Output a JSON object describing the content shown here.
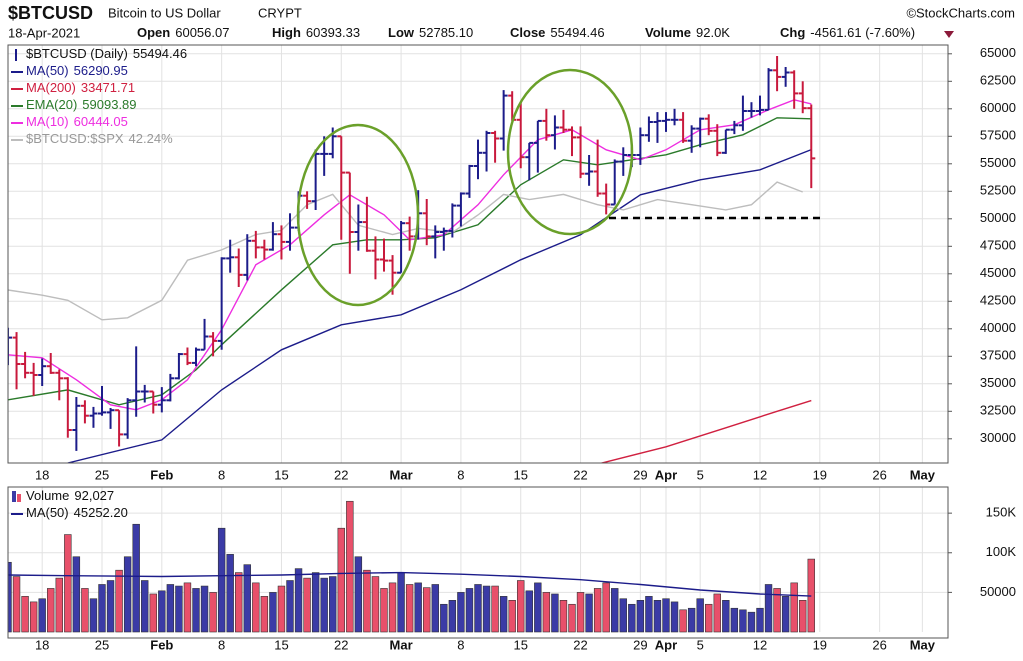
{
  "header": {
    "symbol": "$BTCUSD",
    "name": "Bitcoin to US Dollar",
    "exchange": "CRYPT",
    "source": "©StockCharts.com",
    "date": "18-Apr-2021",
    "stats": [
      {
        "label": "Open",
        "value": "60056.07"
      },
      {
        "label": "High",
        "value": "60393.33"
      },
      {
        "label": "Low",
        "value": "52785.10"
      },
      {
        "label": "Close",
        "value": "55494.46"
      },
      {
        "label": "Volume",
        "value": "92.0K"
      },
      {
        "label": "Chg",
        "value": "-4561.61 (-7.60%)"
      }
    ]
  },
  "chart_data": {
    "type": "ohlc",
    "name": "$BTCUSD (Daily)",
    "last": "55494.46",
    "up_color": "#1c1c8a",
    "down_color": "#c8193c",
    "grid": true,
    "xlim": [
      "2021-01-14",
      "2021-05-04"
    ],
    "ylim": [
      27800,
      65800
    ],
    "y3lim": [
      15.87,
      56.54
    ],
    "yticks": [
      30000,
      32500,
      35000,
      37500,
      40000,
      42500,
      45000,
      47500,
      50000,
      52500,
      55000,
      57500,
      60000,
      62500,
      65000
    ],
    "xticks": [
      {
        "value": "2021-01-18",
        "label": "18"
      },
      {
        "value": "2021-01-25",
        "label": "25"
      },
      {
        "value": "2021-02-01",
        "label": "Feb"
      },
      {
        "value": "2021-02-08",
        "label": "8"
      },
      {
        "value": "2021-02-15",
        "label": "15"
      },
      {
        "value": "2021-02-22",
        "label": "22"
      },
      {
        "value": "2021-03-01",
        "label": "Mar"
      },
      {
        "value": "2021-03-08",
        "label": "8"
      },
      {
        "value": "2021-03-15",
        "label": "15"
      },
      {
        "value": "2021-03-22",
        "label": "22"
      },
      {
        "value": "2021-03-29",
        "label": "29"
      },
      {
        "value": "2021-04-01",
        "label": "Apr"
      },
      {
        "value": "2021-04-05",
        "label": "5"
      },
      {
        "value": "2021-04-12",
        "label": "12"
      },
      {
        "value": "2021-04-19",
        "label": "19"
      },
      {
        "value": "2021-04-26",
        "label": "26"
      },
      {
        "value": "2021-05-01",
        "label": "May"
      }
    ],
    "x": [
      "2021-01-14",
      "2021-01-15",
      "2021-01-16",
      "2021-01-17",
      "2021-01-18",
      "2021-01-19",
      "2021-01-20",
      "2021-01-21",
      "2021-01-22",
      "2021-01-23",
      "2021-01-24",
      "2021-01-25",
      "2021-01-26",
      "2021-01-27",
      "2021-01-28",
      "2021-01-29",
      "2021-01-30",
      "2021-01-31",
      "2021-02-01",
      "2021-02-02",
      "2021-02-03",
      "2021-02-04",
      "2021-02-05",
      "2021-02-06",
      "2021-02-07",
      "2021-02-08",
      "2021-02-09",
      "2021-02-10",
      "2021-02-11",
      "2021-02-12",
      "2021-02-13",
      "2021-02-14",
      "2021-02-15",
      "2021-02-16",
      "2021-02-17",
      "2021-02-18",
      "2021-02-19",
      "2021-02-20",
      "2021-02-21",
      "2021-02-22",
      "2021-02-23",
      "2021-02-24",
      "2021-02-25",
      "2021-02-26",
      "2021-02-27",
      "2021-02-28",
      "2021-03-01",
      "2021-03-02",
      "2021-03-03",
      "2021-03-04",
      "2021-03-05",
      "2021-03-06",
      "2021-03-07",
      "2021-03-08",
      "2021-03-09",
      "2021-03-10",
      "2021-03-11",
      "2021-03-12",
      "2021-03-13",
      "2021-03-14",
      "2021-03-15",
      "2021-03-16",
      "2021-03-17",
      "2021-03-18",
      "2021-03-19",
      "2021-03-20",
      "2021-03-21",
      "2021-03-22",
      "2021-03-23",
      "2021-03-24",
      "2021-03-25",
      "2021-03-26",
      "2021-03-27",
      "2021-03-28",
      "2021-03-29",
      "2021-03-30",
      "2021-03-31",
      "2021-04-01",
      "2021-04-02",
      "2021-04-03",
      "2021-04-04",
      "2021-04-05",
      "2021-04-06",
      "2021-04-07",
      "2021-04-08",
      "2021-04-09",
      "2021-04-10",
      "2021-04-11",
      "2021-04-12",
      "2021-04-13",
      "2021-04-14",
      "2021-04-15",
      "2021-04-16",
      "2021-04-17",
      "2021-04-18"
    ],
    "open": [
      37400,
      39200,
      36800,
      36000,
      35800,
      36600,
      36000,
      35500,
      30800,
      33000,
      32100,
      32300,
      32400,
      32600,
      30400,
      33500,
      34300,
      34300,
      33100,
      33500,
      35500,
      37700,
      36900,
      38100,
      39300,
      38900,
      46400,
      46500,
      44900,
      48000,
      47400,
      47200,
      48600,
      47900,
      49200,
      52100,
      51600,
      55900,
      55900,
      57500,
      54200,
      48800,
      49700,
      47100,
      46300,
      46200,
      45100,
      49600,
      48400,
      50500,
      48400,
      48800,
      48900,
      51200,
      52300,
      54800,
      56000,
      57800,
      57300,
      61200,
      59000,
      55600,
      56900,
      58900,
      57600,
      58300,
      58100,
      57400,
      54100,
      54300,
      52300,
      51300,
      55200,
      55800,
      55800,
      57600,
      58800,
      58900,
      59000,
      59000,
      57100,
      58200,
      59100,
      58000,
      56000,
      58100,
      58500,
      59800,
      59800,
      59900,
      63500,
      62900,
      63300,
      61400,
      60056.07
    ],
    "high": [
      40100,
      39700,
      37900,
      36900,
      37300,
      37800,
      36300,
      35600,
      33800,
      33500,
      32900,
      34800,
      32800,
      32600,
      33700,
      38400,
      34900,
      34300,
      34700,
      35900,
      37800,
      38300,
      38300,
      40900,
      39700,
      46500,
      48100,
      47300,
      48600,
      48900,
      48100,
      49700,
      49400,
      50500,
      52500,
      52500,
      56300,
      57500,
      58300,
      57500,
      54200,
      51300,
      52000,
      48400,
      48200,
      46700,
      49800,
      50200,
      52600,
      51800,
      49400,
      49200,
      51400,
      52400,
      54900,
      57200,
      58000,
      58000,
      61700,
      61600,
      60600,
      56900,
      58900,
      60000,
      59400,
      59900,
      58400,
      58400,
      55800,
      57200,
      53200,
      55400,
      56500,
      56500,
      58300,
      59300,
      59700,
      59700,
      60000,
      59700,
      58500,
      59200,
      59500,
      58600,
      58100,
      58900,
      61200,
      60600,
      61200,
      63700,
      64800,
      63800,
      63500,
      62500,
      60393.33
    ],
    "low": [
      36700,
      34500,
      35500,
      33900,
      34800,
      35900,
      33500,
      30100,
      28900,
      31400,
      31000,
      32100,
      30900,
      29300,
      30000,
      32000,
      33300,
      32300,
      32400,
      33400,
      35400,
      36700,
      36600,
      38100,
      37500,
      38100,
      45100,
      43800,
      44400,
      46400,
      46300,
      47100,
      46300,
      47100,
      48900,
      50900,
      50800,
      53900,
      55500,
      48100,
      45000,
      47100,
      47000,
      44500,
      45200,
      43100,
      45100,
      47100,
      48100,
      47600,
      46400,
      47100,
      48300,
      49300,
      51900,
      53600,
      54300,
      55100,
      56200,
      58900,
      54600,
      53500,
      54200,
      57100,
      56300,
      57800,
      55700,
      53700,
      53000,
      52000,
      50400,
      51300,
      53900,
      54700,
      54900,
      57000,
      56900,
      57900,
      58500,
      56900,
      56000,
      56500,
      57600,
      55700,
      55900,
      57700,
      58000,
      59200,
      59400,
      59900,
      61600,
      62000,
      60000,
      59600,
      52785.1
    ],
    "close": [
      39200,
      36800,
      36000,
      35800,
      36600,
      36000,
      35500,
      30800,
      33000,
      32100,
      32300,
      32400,
      32600,
      30400,
      33500,
      34300,
      34300,
      33100,
      33500,
      35500,
      37700,
      36900,
      38100,
      39300,
      38900,
      46400,
      46500,
      44900,
      48000,
      47400,
      47200,
      48600,
      47900,
      49200,
      52100,
      51600,
      55900,
      55900,
      57500,
      54200,
      48800,
      49700,
      47100,
      46300,
      46200,
      45100,
      49600,
      48400,
      50500,
      48400,
      48800,
      48900,
      51200,
      52300,
      54800,
      56000,
      57800,
      57300,
      61200,
      59000,
      55600,
      56900,
      58900,
      57600,
      58300,
      58100,
      57400,
      54100,
      54300,
      52300,
      51300,
      55200,
      55800,
      55800,
      57600,
      58800,
      58900,
      59000,
      59000,
      57100,
      58200,
      59100,
      58000,
      56000,
      58100,
      58500,
      59800,
      59800,
      59900,
      63500,
      62900,
      63300,
      61400,
      60056.07,
      55494.46
    ],
    "volume": [
      88000,
      70000,
      45000,
      38000,
      42000,
      55000,
      68000,
      123000,
      95000,
      55000,
      42000,
      60000,
      65000,
      78000,
      95000,
      136000,
      65000,
      48000,
      52000,
      60000,
      58000,
      62000,
      55000,
      58000,
      50000,
      131000,
      98000,
      75000,
      85000,
      62000,
      45000,
      50000,
      58000,
      65000,
      80000,
      68000,
      75000,
      68000,
      70000,
      131000,
      165000,
      95000,
      78000,
      70000,
      55000,
      62000,
      75000,
      60000,
      62000,
      56000,
      60000,
      35000,
      40000,
      50000,
      55000,
      60000,
      58000,
      58000,
      45000,
      40000,
      65000,
      52000,
      62000,
      50000,
      48000,
      40000,
      35000,
      50000,
      48000,
      55000,
      62000,
      55000,
      42000,
      35000,
      40000,
      45000,
      40000,
      42000,
      38000,
      28000,
      30000,
      42000,
      35000,
      48000,
      40000,
      30000,
      28000,
      25000,
      30000,
      60000,
      55000,
      45000,
      62000,
      40000,
      92027
    ],
    "series": [
      {
        "name": "MA(50)",
        "last": "56290.95",
        "color": "#1c1c8a",
        "x": [
          "2021-01-21",
          "2021-02-01",
          "2021-02-08",
          "2021-02-15",
          "2021-02-22",
          "2021-03-01",
          "2021-03-08",
          "2021-03-15",
          "2021-03-22",
          "2021-03-29",
          "2021-04-05",
          "2021-04-12",
          "2021-04-18"
        ],
        "values": [
          27800,
          29900,
          34450,
          38090,
          40360,
          41270,
          43550,
          46270,
          48550,
          52180,
          53550,
          54450,
          56290.95
        ]
      },
      {
        "name": "MA(200)",
        "last": "33471.71",
        "color": "#d02040",
        "x": [
          "2021-03-24",
          "2021-04-01",
          "2021-04-08",
          "2021-04-14",
          "2021-04-18"
        ],
        "values": [
          27700,
          29270,
          31000,
          32500,
          33471.71
        ]
      },
      {
        "name": "EMA(20)",
        "last": "59093.89",
        "color": "#2a7a2a",
        "x": [
          "2021-01-14",
          "2021-01-21",
          "2021-01-27",
          "2021-02-01",
          "2021-02-05",
          "2021-02-08",
          "2021-02-15",
          "2021-02-21",
          "2021-02-25",
          "2021-03-01",
          "2021-03-05",
          "2021-03-10",
          "2021-03-15",
          "2021-03-20",
          "2021-03-24",
          "2021-03-28",
          "2021-04-01",
          "2021-04-05",
          "2021-04-10",
          "2021-04-14",
          "2021-04-18"
        ],
        "values": [
          33550,
          34450,
          33090,
          34000,
          36270,
          38550,
          43550,
          47640,
          48090,
          48090,
          48270,
          49450,
          53090,
          55360,
          54910,
          55360,
          55820,
          56730,
          57640,
          59180,
          59093.89
        ]
      },
      {
        "name": "MA(10)",
        "last": "60444.05",
        "color": "#ee2ee0",
        "x": [
          "2021-01-14",
          "2021-01-18",
          "2021-01-22",
          "2021-01-26",
          "2021-01-29",
          "2021-02-01",
          "2021-02-04",
          "2021-02-08",
          "2021-02-12",
          "2021-02-16",
          "2021-02-20",
          "2021-02-23",
          "2021-02-27",
          "2021-03-02",
          "2021-03-06",
          "2021-03-10",
          "2021-03-13",
          "2021-03-17",
          "2021-03-21",
          "2021-03-25",
          "2021-03-29",
          "2021-04-01",
          "2021-04-05",
          "2021-04-09",
          "2021-04-13",
          "2021-04-16",
          "2021-04-18"
        ],
        "values": [
          37640,
          37360,
          35360,
          33090,
          32640,
          33550,
          35360,
          39910,
          45820,
          47640,
          50360,
          52180,
          50360,
          48090,
          48550,
          51270,
          54000,
          57180,
          58090,
          56270,
          55360,
          56270,
          58090,
          58550,
          59910,
          60820,
          60444.05
        ]
      },
      {
        "name": "$BTCUSD:$SPX",
        "last": "42.24%",
        "color": "#bdbdbd",
        "axis": "y3",
        "x": [
          "2021-01-14",
          "2021-01-18",
          "2021-01-21",
          "2021-01-25",
          "2021-01-28",
          "2021-02-01",
          "2021-02-04",
          "2021-02-08",
          "2021-02-12",
          "2021-02-15",
          "2021-02-18",
          "2021-02-21",
          "2021-02-24",
          "2021-02-28",
          "2021-03-03",
          "2021-03-07",
          "2021-03-10",
          "2021-03-13",
          "2021-03-16",
          "2021-03-20",
          "2021-03-24",
          "2021-03-27",
          "2021-03-31",
          "2021-04-04",
          "2021-04-08",
          "2021-04-11",
          "2021-04-14",
          "2021-04-17"
        ],
        "values": [
          32.7,
          32.2,
          31.7,
          29.8,
          30.0,
          31.7,
          35.6,
          36.6,
          38.1,
          38.5,
          41.0,
          42.0,
          39.0,
          38.1,
          38.7,
          38.3,
          40.0,
          42.0,
          41.5,
          42.0,
          41.0,
          40.5,
          41.5,
          41.0,
          40.5,
          41.0,
          43.2,
          42.24
        ]
      }
    ],
    "volume_panel": {
      "type": "bar",
      "name": "Volume",
      "last": "92,027",
      "up_color": "#3b3ba6",
      "down_color": "#e8506a",
      "ylim": [
        0,
        183000
      ],
      "yticks": [
        {
          "value": 50000,
          "label": "50000"
        },
        {
          "value": 100000,
          "label": "100K"
        },
        {
          "value": 150000,
          "label": "150K"
        }
      ],
      "series": [
        {
          "name": "MA(50)",
          "last": "45252.20",
          "color": "#1c1c8a",
          "x": [
            "2021-01-14",
            "2021-01-21",
            "2021-02-01",
            "2021-02-08",
            "2021-02-15",
            "2021-02-22",
            "2021-03-01",
            "2021-03-08",
            "2021-03-15",
            "2021-03-22",
            "2021-03-29",
            "2021-04-05",
            "2021-04-12",
            "2021-04-18"
          ],
          "values": [
            72000,
            71000,
            70000,
            71000,
            72000,
            74000,
            75000,
            73000,
            70000,
            66000,
            60000,
            53000,
            48000,
            45252.2
          ]
        }
      ]
    }
  }
}
